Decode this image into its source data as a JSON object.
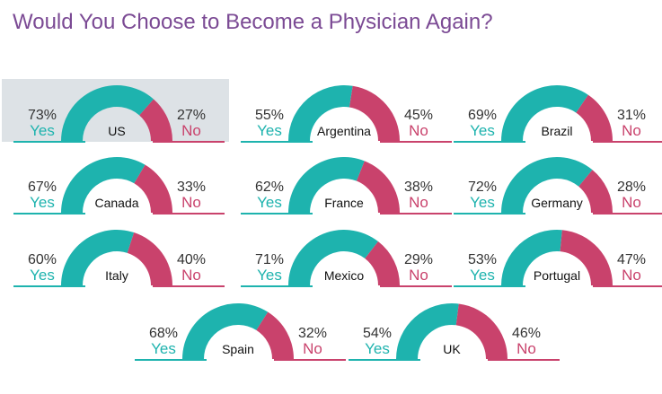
{
  "chart_data": {
    "type": "gauge",
    "title": "Would You Choose to Become a Physician Again?",
    "categories": [
      "US",
      "Argentina",
      "Brazil",
      "Canada",
      "France",
      "Germany",
      "Italy",
      "Mexico",
      "Portugal",
      "Spain",
      "UK"
    ],
    "series": [
      {
        "name": "Yes",
        "color": "#1eb3ae",
        "values": [
          73,
          55,
          69,
          67,
          62,
          72,
          60,
          71,
          53,
          68,
          54
        ],
        "value_labels": [
          "73%",
          "55%",
          "69%",
          "67%",
          "62%",
          "72%",
          "60%",
          "71%",
          "53%",
          "68%",
          "54%"
        ]
      },
      {
        "name": "No",
        "color": "#c9426c",
        "values": [
          27,
          45,
          31,
          33,
          38,
          28,
          40,
          29,
          47,
          32,
          46
        ],
        "value_labels": [
          "27%",
          "45%",
          "31%",
          "33%",
          "38%",
          "28%",
          "40%",
          "29%",
          "47%",
          "32%",
          "46%"
        ]
      }
    ],
    "highlight_category": "US"
  }
}
